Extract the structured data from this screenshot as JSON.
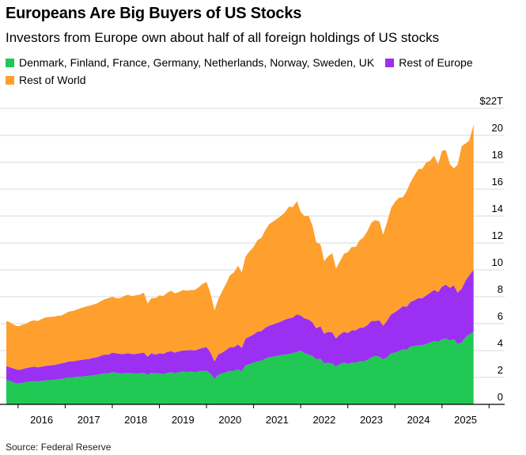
{
  "title": "Europeans Are Big Buyers of US Stocks",
  "subtitle": "Investors from Europe own about half of all foreign holdings of US stocks",
  "source": "Source: Federal Reserve",
  "chart_data": {
    "type": "area",
    "stacked": true,
    "y_unit_prefix": "$",
    "y_unit_suffix": "T",
    "ylim": [
      0,
      22
    ],
    "y_ticks": [
      0,
      2,
      4,
      6,
      8,
      10,
      12,
      14,
      16,
      18,
      20,
      22
    ],
    "x_ticks": [
      "2016",
      "2017",
      "2018",
      "2019",
      "2020",
      "2021",
      "2022",
      "2023",
      "2024",
      "2025"
    ],
    "grid": true,
    "legend_position": "top",
    "x": [
      2015.75,
      2015.83,
      2015.92,
      2016.0,
      2016.08,
      2016.17,
      2016.25,
      2016.33,
      2016.42,
      2016.5,
      2016.58,
      2016.67,
      2016.75,
      2016.83,
      2016.92,
      2017.0,
      2017.08,
      2017.17,
      2017.25,
      2017.33,
      2017.42,
      2017.5,
      2017.58,
      2017.67,
      2017.75,
      2017.83,
      2017.92,
      2018.0,
      2018.08,
      2018.17,
      2018.25,
      2018.33,
      2018.42,
      2018.5,
      2018.58,
      2018.67,
      2018.75,
      2018.83,
      2018.92,
      2019.0,
      2019.08,
      2019.17,
      2019.25,
      2019.33,
      2019.42,
      2019.5,
      2019.58,
      2019.67,
      2019.75,
      2019.83,
      2019.92,
      2020.0,
      2020.08,
      2020.17,
      2020.25,
      2020.33,
      2020.42,
      2020.5,
      2020.58,
      2020.67,
      2020.75,
      2020.83,
      2020.92,
      2021.0,
      2021.08,
      2021.17,
      2021.25,
      2021.33,
      2021.42,
      2021.5,
      2021.58,
      2021.67,
      2021.75,
      2021.83,
      2021.92,
      2022.0,
      2022.08,
      2022.17,
      2022.25,
      2022.33,
      2022.42,
      2022.5,
      2022.58,
      2022.67,
      2022.75,
      2022.83,
      2022.92,
      2023.0,
      2023.08,
      2023.17,
      2023.25,
      2023.33,
      2023.42,
      2023.5,
      2023.58,
      2023.67,
      2023.75,
      2023.83,
      2023.92,
      2024.0,
      2024.08,
      2024.17,
      2024.25,
      2024.33,
      2024.42,
      2024.5,
      2024.58,
      2024.67,
      2024.75,
      2024.83,
      2024.92,
      2025.0,
      2025.08,
      2025.17,
      2025.25,
      2025.33,
      2025.42,
      2025.5,
      2025.58,
      2025.67
    ],
    "series": [
      {
        "name": "Denmark, Finland, France, Germany, Netherlands, Norway, Sweden, UK",
        "color": "#21c854",
        "values": [
          1.8,
          1.75,
          1.6,
          1.55,
          1.6,
          1.65,
          1.7,
          1.72,
          1.7,
          1.75,
          1.78,
          1.8,
          1.82,
          1.85,
          1.9,
          1.95,
          2.0,
          2.0,
          2.05,
          2.05,
          2.1,
          2.12,
          2.15,
          2.2,
          2.25,
          2.3,
          2.3,
          2.4,
          2.35,
          2.3,
          2.3,
          2.35,
          2.3,
          2.3,
          2.3,
          2.35,
          2.2,
          2.35,
          2.3,
          2.3,
          2.25,
          2.35,
          2.4,
          2.3,
          2.4,
          2.45,
          2.4,
          2.45,
          2.4,
          2.45,
          2.5,
          2.5,
          2.3,
          1.9,
          2.2,
          2.3,
          2.4,
          2.5,
          2.5,
          2.6,
          2.45,
          2.9,
          3.0,
          3.1,
          3.2,
          3.25,
          3.4,
          3.5,
          3.55,
          3.6,
          3.65,
          3.7,
          3.75,
          3.8,
          3.9,
          4.0,
          3.8,
          3.7,
          3.6,
          3.35,
          3.4,
          3.05,
          3.1,
          3.05,
          2.8,
          3.0,
          3.1,
          3.0,
          3.1,
          3.1,
          3.2,
          3.2,
          3.3,
          3.5,
          3.6,
          3.55,
          3.35,
          3.5,
          3.8,
          3.85,
          3.95,
          4.1,
          4.05,
          4.3,
          4.35,
          4.4,
          4.4,
          4.5,
          4.6,
          4.7,
          4.65,
          4.85,
          4.9,
          4.75,
          4.85,
          4.5,
          4.6,
          5.0,
          5.2,
          5.4
        ]
      },
      {
        "name": "Rest of Europe",
        "color": "#9b30f2",
        "values": [
          1.05,
          1.0,
          1.05,
          1.0,
          1.0,
          1.05,
          1.05,
          1.08,
          1.05,
          1.05,
          1.08,
          1.1,
          1.1,
          1.12,
          1.15,
          1.15,
          1.2,
          1.2,
          1.2,
          1.25,
          1.25,
          1.25,
          1.3,
          1.3,
          1.35,
          1.4,
          1.4,
          1.45,
          1.45,
          1.45,
          1.45,
          1.45,
          1.45,
          1.45,
          1.5,
          1.5,
          1.35,
          1.45,
          1.4,
          1.5,
          1.5,
          1.55,
          1.55,
          1.55,
          1.55,
          1.55,
          1.6,
          1.6,
          1.6,
          1.65,
          1.7,
          1.75,
          1.6,
          1.3,
          1.5,
          1.55,
          1.65,
          1.75,
          1.75,
          1.85,
          1.75,
          2.0,
          2.05,
          2.1,
          2.2,
          2.2,
          2.3,
          2.35,
          2.4,
          2.45,
          2.5,
          2.6,
          2.65,
          2.65,
          2.8,
          2.6,
          2.6,
          2.6,
          2.5,
          2.3,
          2.4,
          2.2,
          2.3,
          2.3,
          2.1,
          2.2,
          2.3,
          2.3,
          2.4,
          2.4,
          2.5,
          2.5,
          2.6,
          2.7,
          2.6,
          2.7,
          2.5,
          2.7,
          2.9,
          3.0,
          3.1,
          3.2,
          3.2,
          3.3,
          3.4,
          3.5,
          3.5,
          3.6,
          3.7,
          3.8,
          3.7,
          3.9,
          4.0,
          3.9,
          4.0,
          3.8,
          4.0,
          4.2,
          4.4,
          4.6
        ]
      },
      {
        "name": "Rest of World",
        "color": "#ff9f2d",
        "values": [
          3.35,
          3.35,
          3.25,
          3.25,
          3.3,
          3.3,
          3.4,
          3.45,
          3.45,
          3.55,
          3.6,
          3.6,
          3.6,
          3.6,
          3.55,
          3.65,
          3.7,
          3.75,
          3.8,
          3.85,
          3.9,
          3.95,
          3.95,
          4.0,
          4.05,
          4.1,
          4.2,
          4.15,
          4.1,
          4.15,
          4.3,
          4.35,
          4.3,
          4.35,
          4.35,
          4.45,
          3.95,
          4.1,
          4.2,
          4.3,
          4.3,
          4.4,
          4.5,
          4.4,
          4.4,
          4.5,
          4.45,
          4.45,
          4.5,
          4.6,
          4.75,
          4.85,
          4.4,
          3.8,
          4.1,
          4.55,
          4.95,
          5.35,
          5.55,
          5.85,
          5.6,
          6.1,
          6.35,
          6.5,
          6.8,
          6.95,
          7.25,
          7.55,
          7.65,
          7.75,
          7.85,
          8.0,
          8.3,
          8.2,
          8.4,
          7.7,
          7.6,
          7.7,
          7.2,
          6.4,
          6.1,
          5.4,
          5.6,
          5.9,
          5.2,
          5.4,
          5.8,
          6.0,
          6.2,
          6.2,
          6.5,
          6.7,
          7.0,
          7.3,
          7.5,
          7.35,
          6.75,
          7.3,
          7.9,
          8.2,
          8.3,
          8.1,
          8.6,
          8.9,
          9.3,
          9.6,
          9.6,
          9.9,
          9.8,
          10.0,
          9.5,
          10.1,
          10.0,
          9.2,
          8.7,
          9.5,
          10.6,
          10.2,
          10.0,
          10.8
        ]
      }
    ]
  }
}
